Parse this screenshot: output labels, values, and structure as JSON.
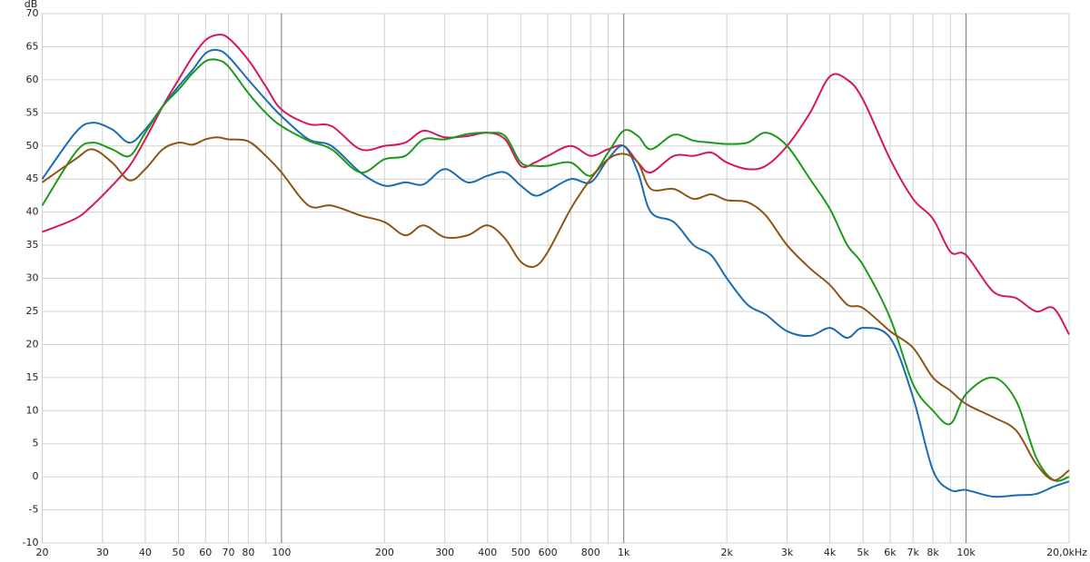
{
  "chart_data": {
    "type": "line",
    "y_unit": "dB",
    "xscale": "log",
    "grid": true,
    "x": [
      20,
      25,
      28,
      32,
      36,
      40,
      45,
      50,
      55,
      60,
      65,
      70,
      80,
      90,
      100,
      120,
      140,
      170,
      200,
      230,
      260,
      300,
      350,
      400,
      450,
      500,
      550,
      600,
      700,
      800,
      900,
      1000,
      1100,
      1200,
      1400,
      1600,
      1800,
      2000,
      2300,
      2600,
      3000,
      3500,
      4000,
      4500,
      5000,
      6000,
      7000,
      8000,
      9000,
      10000,
      12000,
      14000,
      16000,
      18000,
      20000
    ],
    "series": [
      {
        "color": "#d6185a",
        "values": [
          37,
          39,
          41,
          44,
          47,
          51,
          56,
          60,
          63.5,
          66,
          66.8,
          66.3,
          63,
          59,
          55.5,
          53.3,
          53,
          49.5,
          50,
          50.5,
          52.3,
          51.3,
          51.5,
          52,
          51,
          47,
          47.5,
          48.5,
          50,
          48.5,
          49.5,
          50,
          47.5,
          46,
          48.5,
          48.5,
          49,
          47.5,
          46.5,
          47,
          50,
          55,
          60.5,
          60,
          57,
          48,
          42,
          39,
          34,
          33.5,
          28,
          27,
          25,
          25.5,
          21.5
        ]
      },
      {
        "color": "#1a6cb3",
        "values": [
          45,
          52,
          53.5,
          52.5,
          50.5,
          52.5,
          56,
          59,
          61.5,
          64,
          64.5,
          63.5,
          60,
          57,
          54.5,
          51,
          50,
          46,
          44,
          44.5,
          44.2,
          46.5,
          44.5,
          45.5,
          46,
          44,
          42.5,
          43.2,
          45,
          44.5,
          48,
          50,
          46,
          40,
          38.5,
          35,
          33.5,
          30,
          26,
          24.5,
          22,
          21.3,
          22.5,
          21,
          22.5,
          21,
          12,
          1,
          -2,
          -2,
          -3,
          -2.8,
          -2.6,
          -1.5,
          -0.7
        ]
      },
      {
        "color": "#1b9a1b",
        "values": [
          41,
          49,
          50.5,
          49.5,
          48.5,
          52,
          56,
          58.5,
          61,
          62.8,
          63,
          62,
          58,
          55,
          53,
          50.8,
          49.5,
          46,
          48,
          48.5,
          51,
          51,
          51.8,
          52,
          51.5,
          47.5,
          47,
          47,
          47.5,
          45.5,
          49,
          52.3,
          51.5,
          49.5,
          51.7,
          50.8,
          50.5,
          50.3,
          50.5,
          52,
          50,
          45,
          40.5,
          35,
          32,
          24,
          14,
          10,
          8,
          12.5,
          15,
          11.5,
          3,
          -0.5,
          0
        ]
      },
      {
        "color": "#8c5614",
        "values": [
          44.5,
          48,
          49.5,
          47.5,
          44.8,
          46.5,
          49.5,
          50.5,
          50.2,
          51,
          51.3,
          51,
          50.7,
          48.5,
          46,
          41,
          41,
          39.5,
          38.5,
          36.5,
          38,
          36.2,
          36.5,
          38,
          36,
          32.5,
          31.8,
          34,
          40.5,
          45,
          48,
          48.8,
          47.5,
          43.5,
          43.5,
          42,
          42.7,
          41.8,
          41.5,
          39.5,
          35,
          31.5,
          29,
          26,
          25.5,
          22,
          19.5,
          15,
          13,
          11,
          9,
          7,
          2,
          -0.5,
          1
        ]
      }
    ],
    "xlim": [
      20,
      20000
    ],
    "ylim": [
      -10,
      70
    ],
    "xticks": [
      20,
      30,
      40,
      50,
      60,
      70,
      80,
      100,
      200,
      300,
      400,
      500,
      600,
      800,
      {
        "value": 1000,
        "label": "1k"
      },
      {
        "value": 2000,
        "label": "2k"
      },
      {
        "value": 3000,
        "label": "3k"
      },
      {
        "value": 4000,
        "label": "4k"
      },
      {
        "value": 5000,
        "label": "5k"
      },
      {
        "value": 6000,
        "label": "6k"
      },
      {
        "value": 7000,
        "label": "7k"
      },
      {
        "value": 8000,
        "label": "8k"
      },
      {
        "value": 10000,
        "label": "10k"
      },
      {
        "value": 20000,
        "label": "20,0kHz"
      }
    ],
    "xgrid_minor": [
      90,
      700,
      900,
      9000
    ],
    "yticks": [
      -10,
      -5,
      0,
      5,
      10,
      15,
      20,
      25,
      30,
      35,
      40,
      45,
      50,
      55,
      60,
      65,
      70
    ]
  }
}
